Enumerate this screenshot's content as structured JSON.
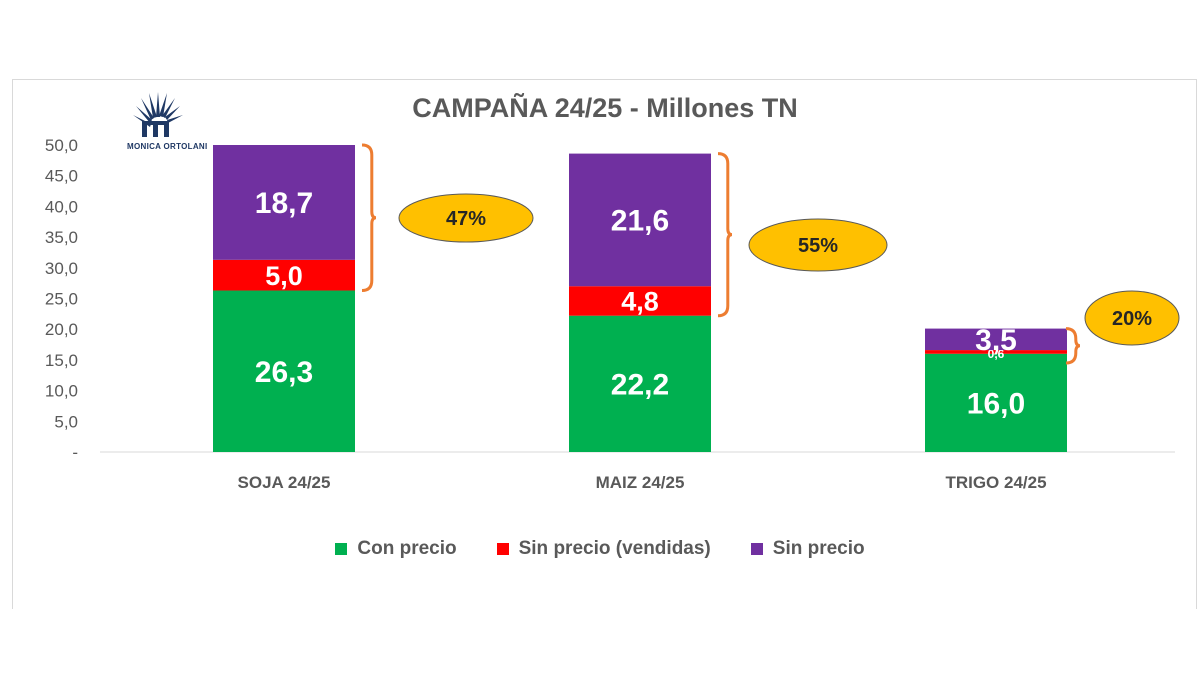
{
  "chart_data": {
    "type": "bar",
    "stacked": true,
    "title": "CAMPAÑA 24/25 - Millones TN",
    "categories": [
      "SOJA 24/25",
      "MAIZ 24/25",
      "TRIGO 24/25"
    ],
    "series": [
      {
        "name": "Con precio",
        "color": "#00b050",
        "values": [
          26.3,
          22.2,
          16.0
        ],
        "labels": [
          "26,3",
          "22,2",
          "16,0"
        ]
      },
      {
        "name": "Sin precio (vendidas)",
        "color": "#ff0000",
        "values": [
          5.0,
          4.8,
          0.6
        ],
        "labels": [
          "5,0",
          "4,8",
          "0,6"
        ]
      },
      {
        "name": "Sin precio",
        "color": "#7030a0",
        "values": [
          18.7,
          21.6,
          3.5
        ],
        "labels": [
          "18,7",
          "21,6",
          "3,5"
        ]
      }
    ],
    "y_ticks": [
      "-",
      "5,0",
      "10,0",
      "15,0",
      "20,0",
      "25,0",
      "30,0",
      "35,0",
      "40,0",
      "45,0",
      "50,0"
    ],
    "ylim": [
      0,
      50
    ],
    "callouts": [
      "47%",
      "55%",
      "20%"
    ],
    "callout_color": "#ffc000",
    "bracket_color": "#ed7d31",
    "legend_position": "bottom"
  },
  "logo": {
    "text": "MONICA ORTOLANI"
  }
}
